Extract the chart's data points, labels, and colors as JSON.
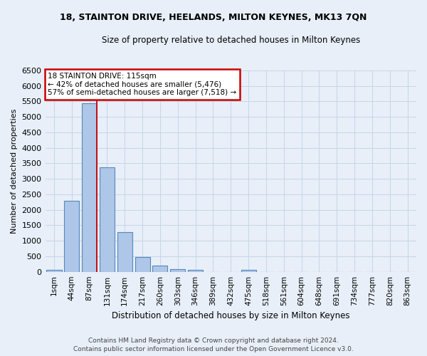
{
  "title": "18, STAINTON DRIVE, HEELANDS, MILTON KEYNES, MK13 7QN",
  "subtitle": "Size of property relative to detached houses in Milton Keynes",
  "xlabel": "Distribution of detached houses by size in Milton Keynes",
  "ylabel": "Number of detached properties",
  "footer_line1": "Contains HM Land Registry data © Crown copyright and database right 2024.",
  "footer_line2": "Contains public sector information licensed under the Open Government Licence v3.0.",
  "bar_labels": [
    "1sqm",
    "44sqm",
    "87sqm",
    "131sqm",
    "174sqm",
    "217sqm",
    "260sqm",
    "303sqm",
    "346sqm",
    "389sqm",
    "432sqm",
    "475sqm",
    "518sqm",
    "561sqm",
    "604sqm",
    "648sqm",
    "691sqm",
    "734sqm",
    "777sqm",
    "820sqm",
    "863sqm"
  ],
  "bar_values": [
    70,
    2280,
    5450,
    3380,
    1290,
    470,
    205,
    85,
    55,
    0,
    0,
    65,
    0,
    0,
    0,
    0,
    0,
    0,
    0,
    0,
    0
  ],
  "bar_color": "#aec6e8",
  "bar_edge_color": "#5588bb",
  "grid_color": "#c5d5e8",
  "background_color": "#e8eff8",
  "vline_position": 2.425,
  "vline_color": "#cc0000",
  "annotation_text": "18 STAINTON DRIVE: 115sqm\n← 42% of detached houses are smaller (5,476)\n57% of semi-detached houses are larger (7,518) →",
  "annotation_box_color": "white",
  "annotation_box_edge": "#cc0000",
  "ylim": [
    0,
    6500
  ],
  "yticks": [
    0,
    500,
    1000,
    1500,
    2000,
    2500,
    3000,
    3500,
    4000,
    4500,
    5000,
    5500,
    6000,
    6500
  ]
}
